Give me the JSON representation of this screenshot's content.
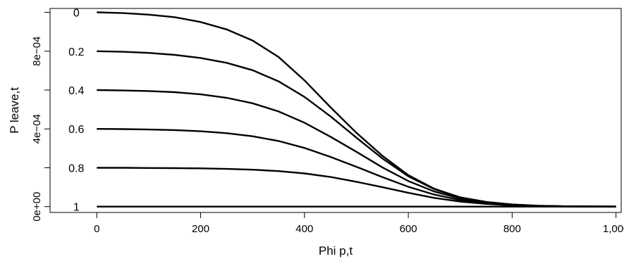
{
  "chart_data": {
    "type": "line",
    "title": "",
    "xlabel": "Phi p,t",
    "ylabel": "P leave,t",
    "xlim": [
      -90,
      1010
    ],
    "ylim": [
      -3e-05,
      0.00102
    ],
    "x_ticks": [
      {
        "value": 0,
        "label": "0"
      },
      {
        "value": 200,
        "label": "200"
      },
      {
        "value": 400,
        "label": "400"
      },
      {
        "value": 600,
        "label": "600"
      },
      {
        "value": 800,
        "label": "800"
      },
      {
        "value": 1000,
        "label": "1,000"
      }
    ],
    "y_ticks": [
      {
        "value": 0,
        "label": "0e+00"
      },
      {
        "value": 0.0002,
        "label": ""
      },
      {
        "value": 0.0004,
        "label": "4e−04"
      },
      {
        "value": 0.0006,
        "label": ""
      },
      {
        "value": 0.0008,
        "label": "8e−04"
      },
      {
        "value": 0.001,
        "label": ""
      }
    ],
    "grid": false,
    "x": [
      0,
      50,
      100,
      150,
      200,
      250,
      300,
      350,
      400,
      450,
      500,
      550,
      600,
      650,
      700,
      750,
      800,
      850,
      900,
      950,
      1000
    ],
    "series": [
      {
        "label": "0",
        "values": [
          0.001,
          0.000996,
          0.000988,
          0.000975,
          0.00095,
          0.000912,
          0.000855,
          0.00077,
          0.00065,
          0.000512,
          0.00038,
          0.000262,
          0.000162,
          9.2e-05,
          4.8e-05,
          2.4e-05,
          1.1e-05,
          4.5e-06,
          2e-06,
          8e-07,
          3e-07
        ]
      },
      {
        "label": "0.2",
        "values": [
          0.0008,
          0.000797,
          0.000791,
          0.000781,
          0.000765,
          0.00074,
          0.000702,
          0.000645,
          0.000565,
          0.000465,
          0.000355,
          0.000248,
          0.000156,
          9e-05,
          4.7e-05,
          2.4e-05,
          1.1e-05,
          4.5e-06,
          2e-06,
          8e-07,
          3e-07
        ]
      },
      {
        "label": "0.4",
        "values": [
          0.0006,
          0.000598,
          0.000595,
          0.000589,
          0.000578,
          0.00056,
          0.000532,
          0.00049,
          0.000432,
          0.00036,
          0.000282,
          0.000202,
          0.000132,
          7.8e-05,
          4.2e-05,
          2.1e-05,
          1e-05,
          4.2e-06,
          1.8e-06,
          7e-07,
          3e-07
        ]
      },
      {
        "label": "0.6",
        "values": [
          0.0004,
          0.000399,
          0.000397,
          0.000394,
          0.000388,
          0.000378,
          0.000362,
          0.000338,
          0.000302,
          0.000256,
          0.000205,
          0.000152,
          0.000102,
          6.2e-05,
          3.4e-05,
          1.7e-05,
          8e-06,
          3.5e-06,
          1.5e-06,
          6e-07,
          2e-07
        ]
      },
      {
        "label": "0.8",
        "values": [
          0.0002,
          0.0002,
          0.000199,
          0.000198,
          0.000197,
          0.000194,
          0.00019,
          0.000183,
          0.000171,
          0.000153,
          0.000128,
          0.0001,
          7.1e-05,
          4.5e-05,
          2.6e-05,
          1.4e-05,
          6.5e-06,
          3e-06,
          1.2e-06,
          5e-07,
          2e-07
        ]
      },
      {
        "label": "1",
        "values": [
          0,
          0,
          0,
          0,
          0,
          0,
          0,
          0,
          0,
          0,
          0,
          0,
          0,
          0,
          0,
          0,
          0,
          0,
          0,
          0,
          0
        ]
      }
    ]
  }
}
